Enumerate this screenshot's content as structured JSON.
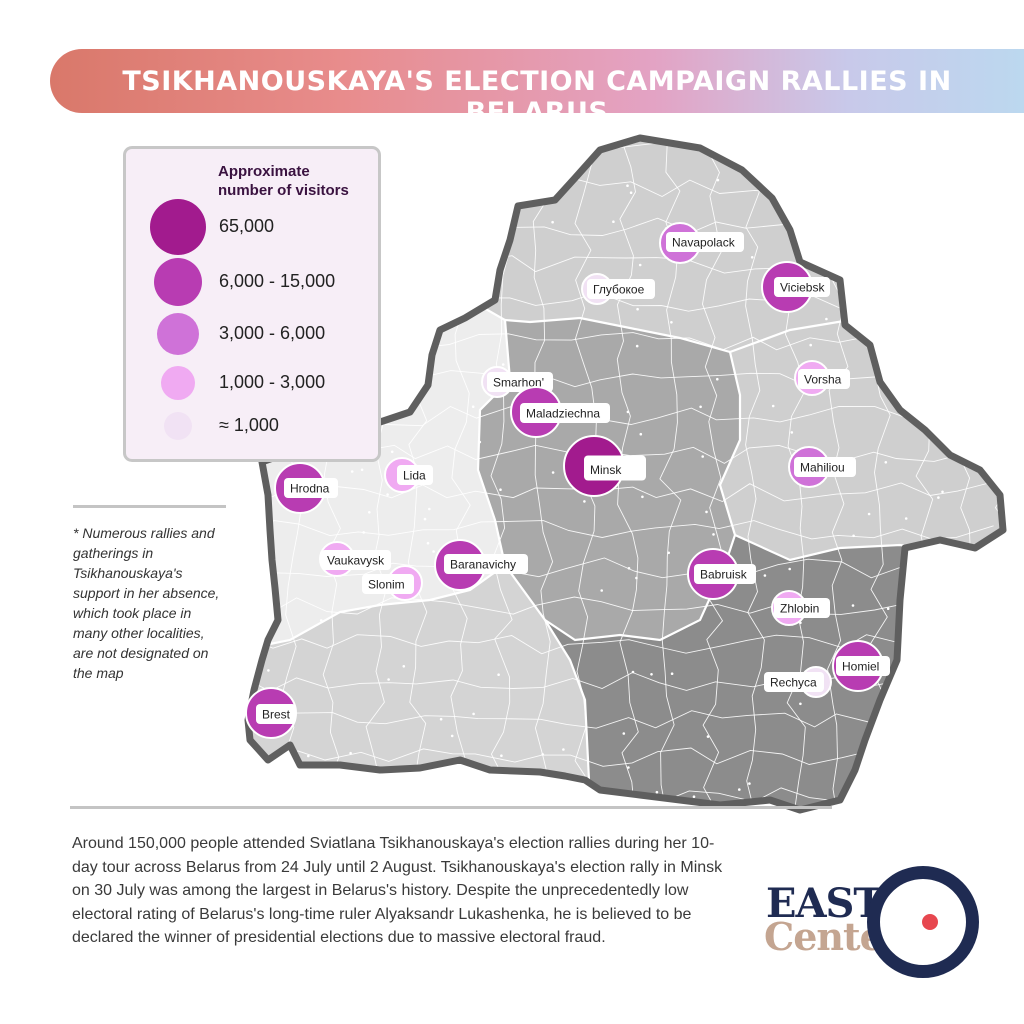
{
  "title": "TSIKHANOUSKAYA'S ELECTION CAMPAIGN RALLIES IN BELARUS",
  "legend": {
    "title": "Approximate number of visitors",
    "items": [
      {
        "label": "65,000",
        "color": "#a21b8e"
      },
      {
        "label": "6,000 - 15,000",
        "color": "#b83cb2"
      },
      {
        "label": "3,000 - 6,000",
        "color": "#cf72d8"
      },
      {
        "label": "1,000 - 3,000",
        "color": "#f0aaf2"
      },
      {
        "label": "≈ 1,000",
        "color": "#f1e2f4"
      }
    ]
  },
  "cities": [
    {
      "name": "Minsk",
      "category": 0
    },
    {
      "name": "Navapolack",
      "category": 2
    },
    {
      "name": "Глубокое",
      "category": 4
    },
    {
      "name": "Viciebsk",
      "category": 1
    },
    {
      "name": "Vorsha",
      "category": 3
    },
    {
      "name": "Smarhon'",
      "category": 4
    },
    {
      "name": "Maladziechna",
      "category": 1
    },
    {
      "name": "Mahiliou",
      "category": 2
    },
    {
      "name": "Lida",
      "category": 3
    },
    {
      "name": "Hrodna",
      "category": 1
    },
    {
      "name": "Vaukavysk",
      "category": 3
    },
    {
      "name": "Slonim",
      "category": 3
    },
    {
      "name": "Baranavichy",
      "category": 1
    },
    {
      "name": "Babruisk",
      "category": 1
    },
    {
      "name": "Zhlobin",
      "category": 3
    },
    {
      "name": "Homiel",
      "category": 1
    },
    {
      "name": "Rechyca",
      "category": 4
    },
    {
      "name": "Brest",
      "category": 1
    }
  ],
  "footnote": "* Numerous rallies and gatherings in Tsikhanouskaya's support in her absence, which took place in many other localities, are not designated on the map",
  "description": "Around 150,000 people attended Sviatlana Tsikhanouskaya's election rallies during her 10-day tour across Belarus from 24 July until 2 August. Tsikhanouskaya's election rally in Minsk on 30 July was among the largest in Belarus's history. Despite the unprecedentedly low electoral rating of Belarus's long-time ruler Alyaksandr Lukashenka, he is believed to be declared the winner of presidential elections due to massive electoral fraud.",
  "logo": {
    "line1": "EAST",
    "line2": "Center"
  },
  "colors": {
    "region_north": "#cfcfcf",
    "region_west": "#ededed",
    "region_center": "#a9a9a9",
    "region_southeast": "#8c8c8c",
    "region_south": "#d4d4d4",
    "border": "#5f5f5f"
  }
}
